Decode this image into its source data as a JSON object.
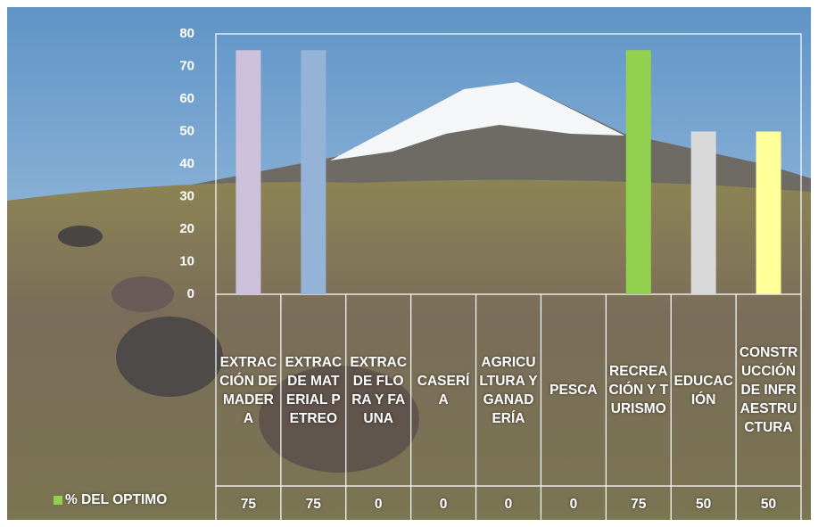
{
  "chart_data": {
    "type": "bar",
    "categories": [
      "EXTRACCIÓN DE MADERA",
      "EXTRAC DE MATERIAL PETREO",
      "EXTRAC DE FLORA Y FAUNA",
      "CASERÍA",
      "AGRICULTURA Y GANADERÍA",
      "PESCA",
      "RECREACIÓN Y TURISMO",
      "EDUCACIÓN",
      "CONSTRUCCIÓN DE INFRAESTRUCTURA"
    ],
    "series": [
      {
        "name": "% DEL OPTIMO",
        "color": "#92d050",
        "values": [
          75,
          75,
          0,
          0,
          0,
          0,
          75,
          50,
          50
        ],
        "point_colors": [
          "#ccc0da",
          "#95b3d7",
          null,
          null,
          null,
          null,
          "#92d050",
          "#d9d9d9",
          "#ffff99"
        ]
      }
    ],
    "ylim": [
      0,
      80
    ],
    "yticks": [
      0,
      10,
      20,
      30,
      40,
      50,
      60,
      70,
      80
    ],
    "grid": false
  }
}
